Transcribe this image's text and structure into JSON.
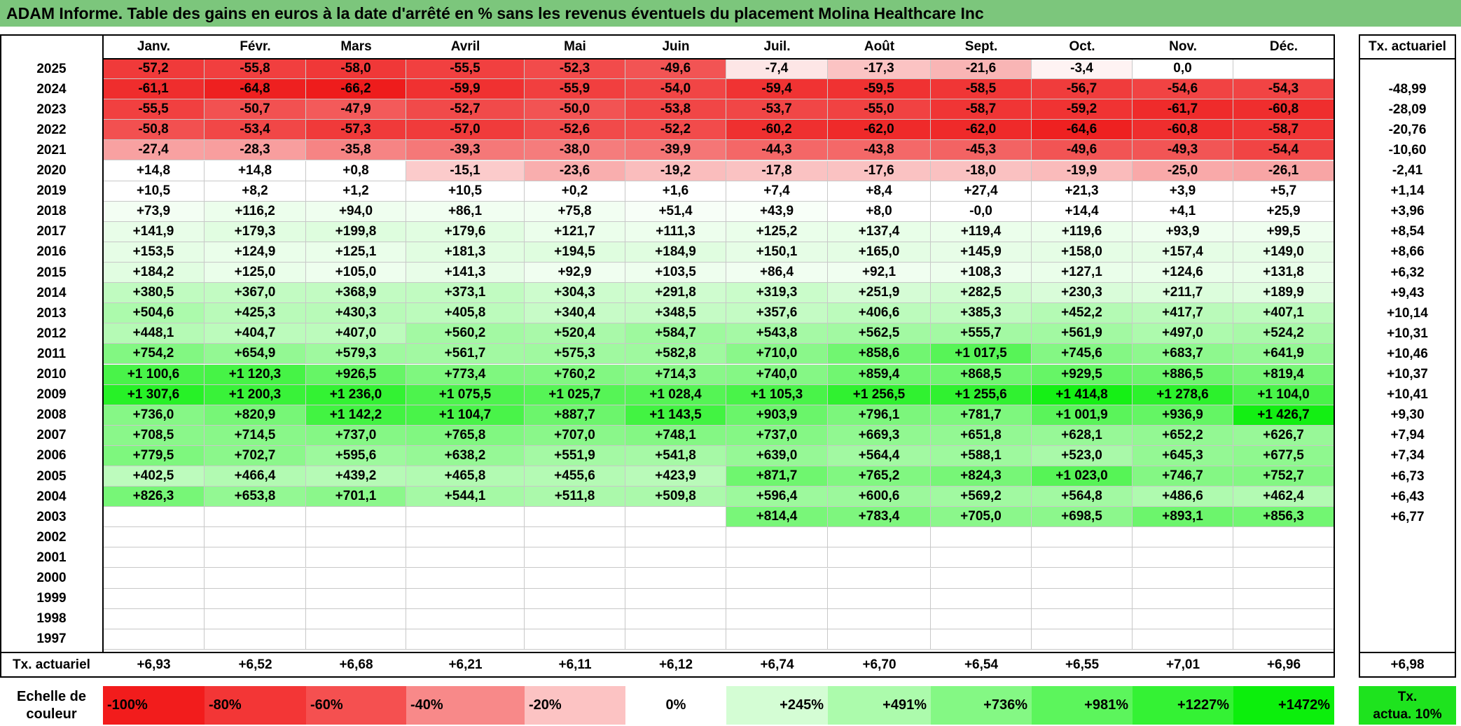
{
  "title": "ADAM Informe. Table des gains en euros à la date d'arrêté en % sans les revenus éventuels du placement Molina Healthcare Inc",
  "months": [
    "Janv.",
    "Févr.",
    "Mars",
    "Avril",
    "Mai",
    "Juin",
    "Juil.",
    "Août",
    "Sept.",
    "Oct.",
    "Nov.",
    "Déc."
  ],
  "rate_header": "Tx. actuariel",
  "rows": [
    {
      "year": "2025",
      "values": [
        "-57,2",
        "-55,8",
        "-58,0",
        "-55,5",
        "-52,3",
        "-49,6",
        "-7,4",
        "-17,3",
        "-21,6",
        "-3,4",
        "0,0",
        ""
      ],
      "rate": ""
    },
    {
      "year": "2024",
      "values": [
        "-61,1",
        "-64,8",
        "-66,2",
        "-59,9",
        "-55,9",
        "-54,0",
        "-59,4",
        "-59,5",
        "-58,5",
        "-56,7",
        "-54,6",
        "-54,3"
      ],
      "rate": "-48,99"
    },
    {
      "year": "2023",
      "values": [
        "-55,5",
        "-50,7",
        "-47,9",
        "-52,7",
        "-50,0",
        "-53,8",
        "-53,7",
        "-55,0",
        "-58,7",
        "-59,2",
        "-61,7",
        "-60,8"
      ],
      "rate": "-28,09"
    },
    {
      "year": "2022",
      "values": [
        "-50,8",
        "-53,4",
        "-57,3",
        "-57,0",
        "-52,6",
        "-52,2",
        "-60,2",
        "-62,0",
        "-62,0",
        "-64,6",
        "-60,8",
        "-58,7"
      ],
      "rate": "-20,76"
    },
    {
      "year": "2021",
      "values": [
        "-27,4",
        "-28,3",
        "-35,8",
        "-39,3",
        "-38,0",
        "-39,9",
        "-44,3",
        "-43,8",
        "-45,3",
        "-49,6",
        "-49,3",
        "-54,4"
      ],
      "rate": "-10,60"
    },
    {
      "year": "2020",
      "values": [
        "+14,8",
        "+14,8",
        "+0,8",
        "-15,1",
        "-23,6",
        "-19,2",
        "-17,8",
        "-17,6",
        "-18,0",
        "-19,9",
        "-25,0",
        "-26,1"
      ],
      "rate": "-2,41"
    },
    {
      "year": "2019",
      "values": [
        "+10,5",
        "+8,2",
        "+1,2",
        "+10,5",
        "+0,2",
        "+1,6",
        "+7,4",
        "+8,4",
        "+27,4",
        "+21,3",
        "+3,9",
        "+5,7"
      ],
      "rate": "+1,14"
    },
    {
      "year": "2018",
      "values": [
        "+73,9",
        "+116,2",
        "+94,0",
        "+86,1",
        "+75,8",
        "+51,4",
        "+43,9",
        "+8,0",
        "-0,0",
        "+14,4",
        "+4,1",
        "+25,9"
      ],
      "rate": "+3,96"
    },
    {
      "year": "2017",
      "values": [
        "+141,9",
        "+179,3",
        "+199,8",
        "+179,6",
        "+121,7",
        "+111,3",
        "+125,2",
        "+137,4",
        "+119,4",
        "+119,6",
        "+93,9",
        "+99,5"
      ],
      "rate": "+8,54"
    },
    {
      "year": "2016",
      "values": [
        "+153,5",
        "+124,9",
        "+125,1",
        "+181,3",
        "+194,5",
        "+184,9",
        "+150,1",
        "+165,0",
        "+145,9",
        "+158,0",
        "+157,4",
        "+149,0"
      ],
      "rate": "+8,66"
    },
    {
      "year": "2015",
      "values": [
        "+184,2",
        "+125,0",
        "+105,0",
        "+141,3",
        "+92,9",
        "+103,5",
        "+86,4",
        "+92,1",
        "+108,3",
        "+127,1",
        "+124,6",
        "+131,8"
      ],
      "rate": "+6,32"
    },
    {
      "year": "2014",
      "values": [
        "+380,5",
        "+367,0",
        "+368,9",
        "+373,1",
        "+304,3",
        "+291,8",
        "+319,3",
        "+251,9",
        "+282,5",
        "+230,3",
        "+211,7",
        "+189,9"
      ],
      "rate": "+9,43"
    },
    {
      "year": "2013",
      "values": [
        "+504,6",
        "+425,3",
        "+430,3",
        "+405,8",
        "+340,4",
        "+348,5",
        "+357,6",
        "+406,6",
        "+385,3",
        "+452,2",
        "+417,7",
        "+407,1"
      ],
      "rate": "+10,14"
    },
    {
      "year": "2012",
      "values": [
        "+448,1",
        "+404,7",
        "+407,0",
        "+560,2",
        "+520,4",
        "+584,7",
        "+543,8",
        "+562,5",
        "+555,7",
        "+561,9",
        "+497,0",
        "+524,2"
      ],
      "rate": "+10,31"
    },
    {
      "year": "2011",
      "values": [
        "+754,2",
        "+654,9",
        "+579,3",
        "+561,7",
        "+575,3",
        "+582,8",
        "+710,0",
        "+858,6",
        "+1 017,5",
        "+745,6",
        "+683,7",
        "+641,9"
      ],
      "rate": "+10,46"
    },
    {
      "year": "2010",
      "values": [
        "+1 100,6",
        "+1 120,3",
        "+926,5",
        "+773,4",
        "+760,2",
        "+714,3",
        "+740,0",
        "+859,4",
        "+868,5",
        "+929,5",
        "+886,5",
        "+819,4"
      ],
      "rate": "+10,37"
    },
    {
      "year": "2009",
      "values": [
        "+1 307,6",
        "+1 200,3",
        "+1 236,0",
        "+1 075,5",
        "+1 025,7",
        "+1 028,4",
        "+1 105,3",
        "+1 256,5",
        "+1 255,6",
        "+1 414,8",
        "+1 278,6",
        "+1 104,0"
      ],
      "rate": "+10,41"
    },
    {
      "year": "2008",
      "values": [
        "+736,0",
        "+820,9",
        "+1 142,2",
        "+1 104,7",
        "+887,7",
        "+1 143,5",
        "+903,9",
        "+796,1",
        "+781,7",
        "+1 001,9",
        "+936,9",
        "+1 426,7"
      ],
      "rate": "+9,30"
    },
    {
      "year": "2007",
      "values": [
        "+708,5",
        "+714,5",
        "+737,0",
        "+765,8",
        "+707,0",
        "+748,1",
        "+737,0",
        "+669,3",
        "+651,8",
        "+628,1",
        "+652,2",
        "+626,7"
      ],
      "rate": "+7,94"
    },
    {
      "year": "2006",
      "values": [
        "+779,5",
        "+702,7",
        "+595,6",
        "+638,2",
        "+551,9",
        "+541,8",
        "+639,0",
        "+564,4",
        "+588,1",
        "+523,0",
        "+645,3",
        "+677,5"
      ],
      "rate": "+7,34"
    },
    {
      "year": "2005",
      "values": [
        "+402,5",
        "+466,4",
        "+439,2",
        "+465,8",
        "+455,6",
        "+423,9",
        "+871,7",
        "+765,2",
        "+824,3",
        "+1 023,0",
        "+746,7",
        "+752,7"
      ],
      "rate": "+6,73"
    },
    {
      "year": "2004",
      "values": [
        "+826,3",
        "+653,8",
        "+701,1",
        "+544,1",
        "+511,8",
        "+509,8",
        "+596,4",
        "+600,6",
        "+569,2",
        "+564,8",
        "+486,6",
        "+462,4"
      ],
      "rate": "+6,43"
    },
    {
      "year": "2003",
      "values": [
        "",
        "",
        "",
        "",
        "",
        "",
        "+814,4",
        "+783,4",
        "+705,0",
        "+698,5",
        "+893,1",
        "+856,3"
      ],
      "rate": "+6,77"
    },
    {
      "year": "2002",
      "values": [
        "",
        "",
        "",
        "",
        "",
        "",
        "",
        "",
        "",
        "",
        "",
        ""
      ],
      "rate": ""
    },
    {
      "year": "2001",
      "values": [
        "",
        "",
        "",
        "",
        "",
        "",
        "",
        "",
        "",
        "",
        "",
        ""
      ],
      "rate": ""
    },
    {
      "year": "2000",
      "values": [
        "",
        "",
        "",
        "",
        "",
        "",
        "",
        "",
        "",
        "",
        "",
        ""
      ],
      "rate": ""
    },
    {
      "year": "1999",
      "values": [
        "",
        "",
        "",
        "",
        "",
        "",
        "",
        "",
        "",
        "",
        "",
        ""
      ],
      "rate": ""
    },
    {
      "year": "1998",
      "values": [
        "",
        "",
        "",
        "",
        "",
        "",
        "",
        "",
        "",
        "",
        "",
        ""
      ],
      "rate": ""
    },
    {
      "year": "1997",
      "values": [
        "",
        "",
        "",
        "",
        "",
        "",
        "",
        "",
        "",
        "",
        "",
        ""
      ],
      "rate": ""
    }
  ],
  "footer": {
    "label": "Tx. actuariel",
    "values": [
      "+6,93",
      "+6,52",
      "+6,68",
      "+6,21",
      "+6,11",
      "+6,12",
      "+6,74",
      "+6,70",
      "+6,54",
      "+6,55",
      "+7,01",
      "+6,96"
    ],
    "rate": "+6,98"
  },
  "legend": {
    "label_line1": "Echelle de",
    "label_line2": "couleur",
    "items": [
      {
        "text": "-100%",
        "color": "#f21c1c",
        "align": "left"
      },
      {
        "text": "-80%",
        "color": "#f33636",
        "align": "left"
      },
      {
        "text": "-60%",
        "color": "#f55050",
        "align": "left"
      },
      {
        "text": "-40%",
        "color": "#f88989",
        "align": "left"
      },
      {
        "text": "-20%",
        "color": "#fcc3c3",
        "align": "left"
      },
      {
        "text": "0%",
        "color": "#ffffff",
        "align": "center"
      },
      {
        "text": "+245%",
        "color": "#d4fdd4",
        "align": "right"
      },
      {
        "text": "+491%",
        "color": "#acfbac",
        "align": "right"
      },
      {
        "text": "+736%",
        "color": "#84f884",
        "align": "right"
      },
      {
        "text": "+981%",
        "color": "#5cf55c",
        "align": "right"
      },
      {
        "text": "+1227%",
        "color": "#34f234",
        "align": "right"
      },
      {
        "text": "+1472%",
        "color": "#0cef0c",
        "align": "right"
      }
    ],
    "rate_line1": "Tx.",
    "rate_line2": "actua. 10%",
    "rate_color": "#1ee31e"
  },
  "colors": {
    "title_bg": "#7cc67c",
    "negative_full": "#ee1c1c",
    "positive_full": "#0cef0c",
    "neutral": "#ffffff"
  }
}
